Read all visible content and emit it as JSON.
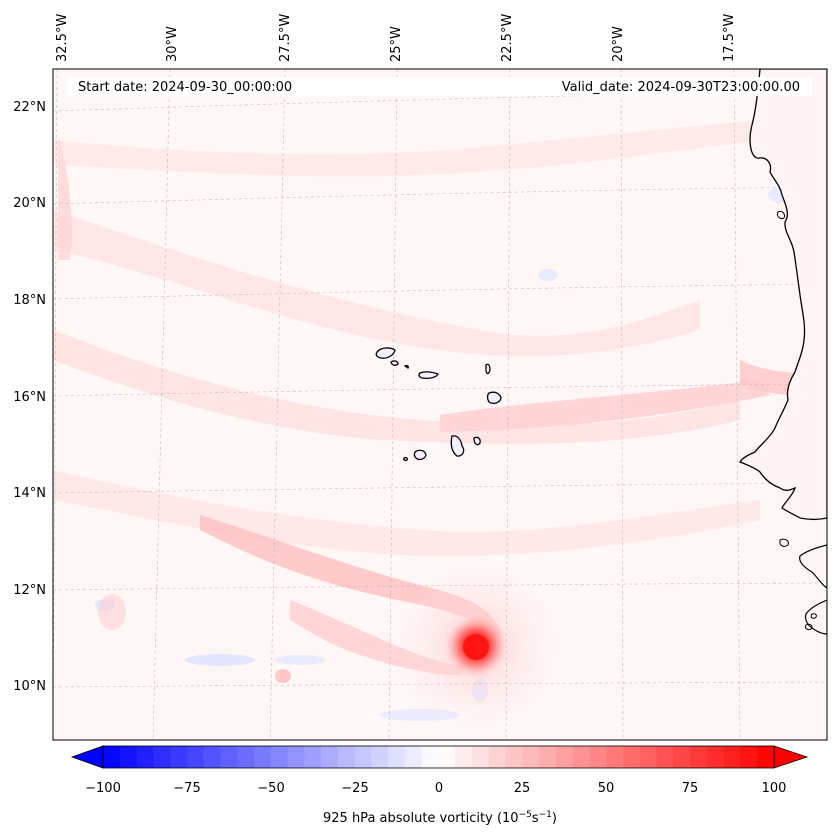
{
  "map": {
    "start_date": "Start date: 2024-09-30_00:00:00",
    "valid_date": "Valid_date: 2024-09-30T23:00:00.00",
    "lon_labels": [
      "32.5°W",
      "30°W",
      "27.5°W",
      "25°W",
      "22.5°W",
      "20°W",
      "17.5°W"
    ],
    "lat_labels": [
      "22°N",
      "20°N",
      "18°N",
      "16°N",
      "14°N",
      "12°N",
      "10°N"
    ],
    "features": {
      "coastline": "West Africa coastline",
      "islands": "Cape Verde Islands",
      "vortex_center": "approx. 23.2°W, 10.8°N"
    }
  },
  "colorbar": {
    "ticks": [
      "−100",
      "−75",
      "−50",
      "−25",
      "0",
      "25",
      "50",
      "75",
      "100"
    ],
    "label": "925 hPa absolute vorticity (10",
    "label_exp1": "−5",
    "label_mid": "s",
    "label_exp2": "−1",
    "label_end": ")",
    "colormap": "bwr",
    "range": [
      -100,
      100
    ],
    "extend": "both"
  }
}
